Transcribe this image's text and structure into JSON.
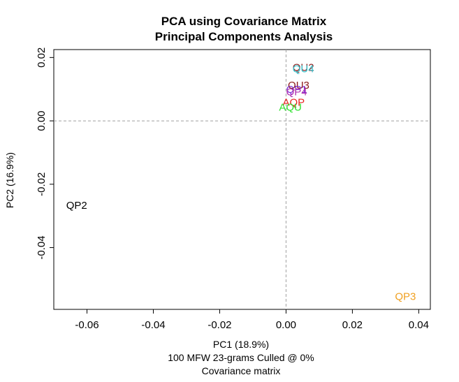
{
  "chart_data": {
    "type": "scatter",
    "title": "PCA using Covariance Matrix",
    "subtitle": "Principal Components Analysis",
    "xlabel": "PC1 (18.9%)",
    "ylabel": "PC2 (16.9%)",
    "caption_lines": [
      "100 MFW 23-grams Culled @ 0%",
      "Covariance matrix"
    ],
    "xlim": [
      -0.07,
      0.0435
    ],
    "ylim": [
      -0.0595,
      0.0225
    ],
    "x_ticks": [
      -0.06,
      -0.04,
      -0.02,
      0.0,
      0.02,
      0.04
    ],
    "x_tick_labels": [
      "-0.06",
      "-0.04",
      "-0.02",
      "0.00",
      "0.02",
      "0.04"
    ],
    "y_ticks": [
      -0.04,
      -0.02,
      0.0,
      0.02
    ],
    "y_tick_labels": [
      "-0.04",
      "-0.02",
      "0.00",
      "0.02"
    ],
    "reference_lines": {
      "x": 0,
      "y": 0,
      "style": "dashed",
      "color": "#a0a0a0"
    },
    "grid": false,
    "points": [
      {
        "label": "QU2",
        "x": 0.0052,
        "y": 0.0168,
        "color": "#8b1a1a"
      },
      {
        "label": "QU4",
        "x": 0.0052,
        "y": 0.0163,
        "color": "#35c1cc"
      },
      {
        "label": "QU3",
        "x": 0.0038,
        "y": 0.0111,
        "color": "#8b1a1a"
      },
      {
        "label": "QP1",
        "x": 0.0032,
        "y": 0.0098,
        "color": "#7b2cd6"
      },
      {
        "label": "QP4",
        "x": 0.0032,
        "y": 0.009,
        "color": "#b030b0"
      },
      {
        "label": "AQP",
        "x": 0.0023,
        "y": 0.0058,
        "color": "#e8231f"
      },
      {
        "label": "AQU",
        "x": 0.0013,
        "y": 0.0042,
        "color": "#2ee02e"
      },
      {
        "label": "QP2",
        "x": -0.0631,
        "y": -0.0268,
        "color": "#000000"
      },
      {
        "label": "QP3",
        "x": 0.036,
        "y": -0.0555,
        "color": "#f0a020"
      }
    ]
  }
}
